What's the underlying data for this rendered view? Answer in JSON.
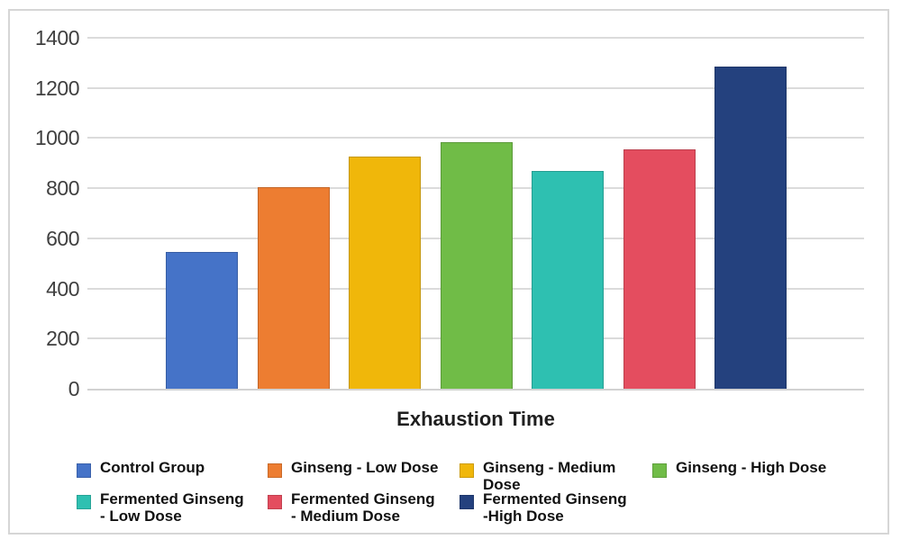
{
  "chart_data": {
    "type": "bar",
    "title": "",
    "xlabel": "Exhaustion Time",
    "ylabel": "",
    "ylim": [
      0,
      1400
    ],
    "yticks": [
      0,
      200,
      400,
      600,
      800,
      1000,
      1200,
      1400
    ],
    "grid": "horizontal",
    "legend_position": "bottom",
    "categories": [
      "Control Group",
      "Ginseng - Low Dose",
      "Ginseng - Medium Dose",
      "Ginseng - High Dose",
      "Fermented Ginseng - Low Dose",
      "Fermented Ginseng - Medium Dose",
      "Fermented Ginseng - High Dose"
    ],
    "values": [
      545,
      805,
      925,
      985,
      870,
      955,
      1285
    ],
    "colors": [
      "#4573C8",
      "#ED7D31",
      "#F0B70A",
      "#70BC47",
      "#2EC0B1",
      "#E44D5F",
      "#24417E"
    ]
  },
  "legend": {
    "items": [
      {
        "label": "Control Group"
      },
      {
        "label": "Ginseng - Low Dose"
      },
      {
        "label": "Ginseng - Medium\nDose"
      },
      {
        "label": "Ginseng - High Dose"
      },
      {
        "label": "Fermented Ginseng\n - Low Dose"
      },
      {
        "label": "Fermented Ginseng\n - Medium Dose"
      },
      {
        "label": "Fermented Ginseng\n-High Dose"
      }
    ]
  },
  "colors": {
    "gridline": "#dbdbdb",
    "axis_line": "#d2d2d2",
    "frame_border": "#d6d6d6",
    "tick_text": "#404040",
    "title_text": "#1f1f1f",
    "legend_text": "#111111"
  }
}
